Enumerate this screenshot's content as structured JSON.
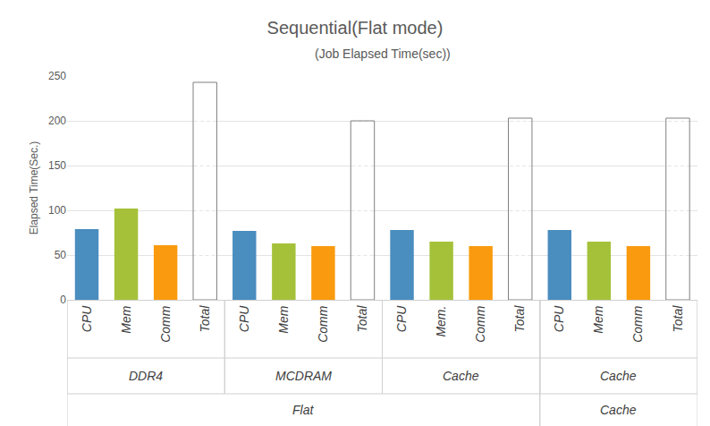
{
  "chart_data": {
    "type": "bar",
    "title": "Sequential(Flat mode)",
    "subtitle": "(Job Elapsed Time(sec))",
    "y_label": "Elapsed Time(Sec.)",
    "categories": [
      "CPU",
      "Mem",
      "Comm",
      "Total",
      "CPU",
      "Mem",
      "Comm",
      "Total",
      "CPU",
      "Mem.",
      "Comm",
      "Total",
      "CPU",
      "Mem",
      "Comm",
      "Total"
    ],
    "group_labels": [
      "DDR4",
      "DDR4",
      "DDR4",
      "DDR4",
      "MCDRAM",
      "MCDRAM",
      "MCDRAM",
      "MCDRAM",
      "Cache",
      "Cache",
      "Cache",
      "Cache",
      "Cache",
      "Cache",
      "Cache",
      "Cache"
    ],
    "outer_labels": [
      "Flat",
      "Flat",
      "Flat",
      "Flat",
      "Flat",
      "Flat",
      "Flat",
      "Flat",
      "Flat",
      "Flat",
      "Flat",
      "Flat",
      "Cache",
      "Cache",
      "Cache",
      "Cache"
    ],
    "values": [
      79,
      102,
      61,
      243,
      77,
      63,
      60,
      200,
      78,
      65,
      60,
      203,
      78,
      65,
      60,
      203
    ],
    "colors": [
      "#4a8dbf",
      "#a5c13a",
      "#fa9a0e",
      "#808080",
      "#4a8dbf",
      "#a5c13a",
      "#fa9a0e",
      "#808080",
      "#4a8dbf",
      "#a5c13a",
      "#fa9a0e",
      "#808080",
      "#4a8dbf",
      "#a5c13a",
      "#fa9a0e",
      "#808080"
    ],
    "ylim": [
      0,
      250
    ],
    "yticks": [
      0,
      50,
      100,
      150,
      200,
      250
    ],
    "grid": true
  }
}
